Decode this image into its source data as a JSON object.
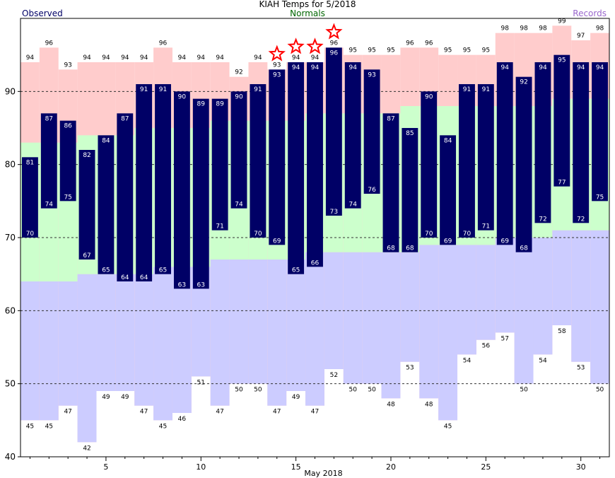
{
  "title": "KIAH Temps for 5/2018",
  "legend": {
    "observed": {
      "label": "Observed",
      "color": "#000066"
    },
    "normals": {
      "label": "Normals",
      "color": "#006600"
    },
    "records": {
      "label": "Records",
      "color": "#9966cc"
    }
  },
  "colors": {
    "observed_bar": "#000066",
    "normal_band": "#ccffcc",
    "record_high_band": "#ffcccc",
    "record_low_band": "#ccccff",
    "record_star": "#ff0000"
  },
  "chart_data": {
    "type": "bar",
    "title": "KIAH Temps for 5/2018",
    "xlabel": "May 2018",
    "ylabel": "",
    "xlim": [
      0.5,
      31.5
    ],
    "ylim": [
      40,
      100
    ],
    "yticks": [
      40,
      50,
      60,
      70,
      80,
      90
    ],
    "xticks": [
      5,
      10,
      15,
      20,
      25,
      30
    ],
    "grid": true,
    "days": [
      1,
      2,
      3,
      4,
      5,
      6,
      7,
      8,
      9,
      10,
      11,
      12,
      13,
      14,
      15,
      16,
      17,
      18,
      19,
      20,
      21,
      22,
      23,
      24,
      25,
      26,
      27,
      28,
      29,
      30,
      31
    ],
    "series": [
      {
        "name": "Observed",
        "high": [
          81,
          87,
          86,
          82,
          84,
          87,
          91,
          91,
          90,
          89,
          89,
          90,
          91,
          93,
          94,
          94,
          96,
          94,
          93,
          87,
          85,
          90,
          84,
          91,
          91,
          94,
          92,
          94,
          95,
          94,
          94
        ],
        "low": [
          70,
          74,
          75,
          67,
          65,
          64,
          64,
          65,
          63,
          63,
          71,
          74,
          70,
          69,
          65,
          66,
          73,
          74,
          76,
          68,
          68,
          70,
          69,
          70,
          71,
          69,
          68,
          72,
          77,
          72,
          75
        ]
      },
      {
        "name": "Normals",
        "high": [
          83,
          83,
          83,
          84,
          84,
          84,
          85,
          85,
          85,
          85,
          86,
          86,
          86,
          86,
          86,
          87,
          87,
          87,
          87,
          87,
          88,
          88,
          88,
          88,
          88,
          88,
          88,
          88,
          89,
          89,
          89
        ],
        "low": [
          64,
          64,
          64,
          65,
          65,
          65,
          65,
          66,
          66,
          66,
          67,
          67,
          67,
          67,
          67,
          68,
          68,
          68,
          68,
          68,
          68,
          69,
          69,
          69,
          69,
          70,
          70,
          70,
          71,
          71,
          71
        ]
      },
      {
        "name": "Records",
        "high": [
          94,
          96,
          93,
          94,
          94,
          94,
          94,
          96,
          94,
          94,
          94,
          92,
          94,
          93,
          94,
          94,
          96,
          95,
          95,
          95,
          96,
          96,
          95,
          95,
          95,
          98,
          98,
          98,
          99,
          97,
          98
        ],
        "low": [
          45,
          45,
          47,
          42,
          49,
          49,
          47,
          45,
          46,
          51,
          47,
          50,
          50,
          47,
          49,
          47,
          52,
          50,
          50,
          48,
          53,
          48,
          45,
          54,
          56,
          57,
          50,
          54,
          58,
          53,
          50
        ]
      }
    ],
    "record_days": [
      14,
      15,
      16,
      17
    ],
    "annotations": []
  }
}
